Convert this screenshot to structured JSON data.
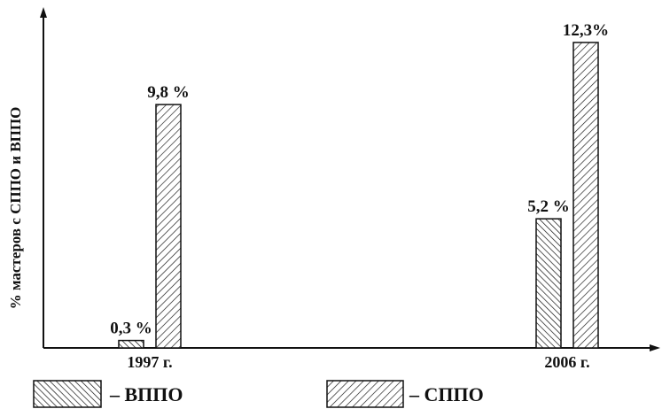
{
  "chart_data": {
    "type": "bar",
    "categories": [
      "1997 г.",
      "2006 г."
    ],
    "series": [
      {
        "name": "– ВППО",
        "values": [
          0.3,
          5.2
        ],
        "labels": [
          "0,3 %",
          "5,2 %"
        ],
        "pattern": "dense-hatch"
      },
      {
        "name": "– СППО",
        "values": [
          9.8,
          12.3
        ],
        "labels": [
          "9,8 %",
          "12,3%"
        ],
        "pattern": "wide-hatch"
      }
    ],
    "title": "",
    "xlabel": "",
    "ylabel": "% мастеров с СППО и ВППО",
    "ylim": [
      0,
      14
    ],
    "grid": false,
    "legend": "bottom",
    "colors": {
      "stroke": "#111111",
      "background": "#ffffff"
    }
  }
}
